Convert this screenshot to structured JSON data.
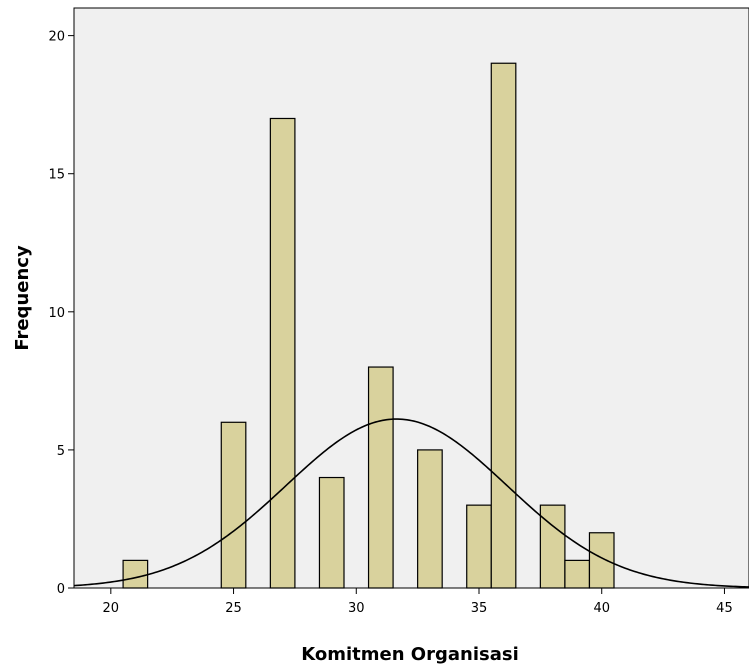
{
  "chart_data": {
    "type": "bar",
    "subtype": "histogram",
    "title": "",
    "xlabel": "Komitmen Organisasi",
    "ylabel": "Frequency",
    "xlim": [
      18.5,
      46
    ],
    "ylim": [
      0,
      21
    ],
    "x_ticks": [
      20,
      25,
      30,
      35,
      40,
      45
    ],
    "y_ticks": [
      0,
      5,
      10,
      15,
      20
    ],
    "bin_width": 1,
    "x": [
      21,
      25,
      27,
      29,
      31,
      33,
      35,
      36,
      38,
      39,
      40
    ],
    "values": [
      1,
      6,
      17,
      4,
      8,
      5,
      3,
      19,
      3,
      1,
      2
    ],
    "normal_curve": {
      "mean": 31.64,
      "sd": 4.5,
      "n": 69,
      "bin_width": 1
    },
    "grid": false,
    "colors": {
      "bar_fill": "#d9d29d",
      "bar_stroke": "#000000",
      "plot_background": "#f0f0f0",
      "curve": "#000000"
    }
  }
}
